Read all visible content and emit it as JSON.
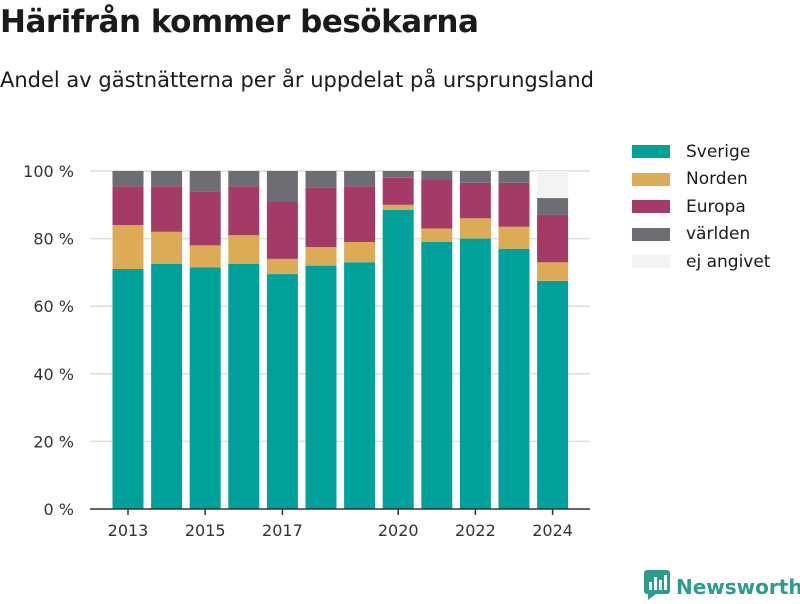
{
  "header": {
    "title": "Härifrån kommer besökarna",
    "subtitle": "Andel av gästnätterna per år uppdelat på ursprungsland"
  },
  "brand": {
    "name": "Newsworthy",
    "icon": "newsworthy-logo-icon",
    "color": "#2a9d8f"
  },
  "chart_data": {
    "type": "bar",
    "stacked": true,
    "categories": [
      "2013",
      "2014",
      "2015",
      "2016",
      "2017",
      "2018",
      "2019",
      "2020",
      "2021",
      "2022",
      "2023",
      "2024"
    ],
    "x_tick_labels": [
      "2013",
      "2015",
      "2017",
      "2020",
      "2022",
      "2024"
    ],
    "y_tick_labels": [
      "0 %",
      "20 %",
      "40 %",
      "60 %",
      "80 %",
      "100 %"
    ],
    "ylim": [
      0,
      100
    ],
    "y_ticks": [
      0,
      20,
      40,
      60,
      80,
      100
    ],
    "grid": true,
    "legend_position": "right",
    "series": [
      {
        "name": "Sverige",
        "color": "#00a19a",
        "values": [
          71,
          72.5,
          71.5,
          72.5,
          69.5,
          72,
          73,
          88.5,
          79,
          80,
          77,
          67.5
        ]
      },
      {
        "name": "Norden",
        "color": "#dcab56",
        "values": [
          13,
          9.5,
          6.5,
          8.5,
          4.5,
          5.5,
          6,
          1.5,
          4,
          6,
          6.5,
          5.5
        ]
      },
      {
        "name": "Europa",
        "color": "#a33b66",
        "values": [
          11.5,
          13.5,
          16,
          14.5,
          17,
          17.5,
          16.5,
          8,
          14.5,
          10.5,
          13,
          14
        ]
      },
      {
        "name": "världen",
        "color": "#6d6e73",
        "values": [
          4.5,
          4.5,
          6,
          4.5,
          9,
          5,
          4.5,
          2,
          2.5,
          3.5,
          3.5,
          5
        ]
      },
      {
        "name": "ej angivet",
        "color": "#f3f3f3",
        "values": [
          0,
          0,
          0,
          0,
          0,
          0,
          0,
          0,
          0,
          0,
          0,
          8
        ]
      }
    ]
  }
}
